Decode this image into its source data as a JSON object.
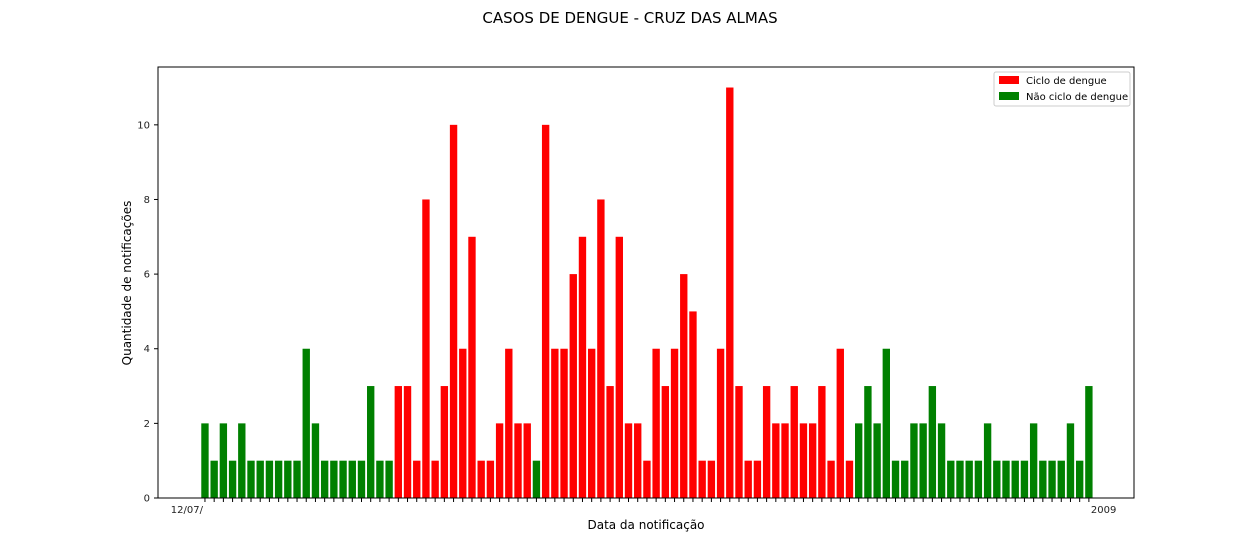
{
  "chart_data": {
    "type": "bar",
    "title": "CASOS DE DENGUE - CRUZ DAS ALMAS",
    "xlabel": "Data da notificação",
    "ylabel": "Quantidade de notificações",
    "ylim": [
      0,
      11.55
    ],
    "yticks": [
      0,
      2,
      4,
      6,
      8,
      10
    ],
    "xtick_first": "12/07/",
    "xtick_last": "2009",
    "grid": false,
    "legend_position": "top-right",
    "series": [
      {
        "name": "Ciclo de dengue",
        "color": "#ff0000"
      },
      {
        "name": "Não ciclo de dengue",
        "color": "#008000"
      }
    ],
    "values": [
      2,
      1,
      2,
      1,
      2,
      1,
      1,
      1,
      1,
      1,
      1,
      4,
      2,
      1,
      1,
      1,
      1,
      1,
      3,
      1,
      1,
      3,
      3,
      1,
      8,
      1,
      3,
      10,
      4,
      7,
      1,
      1,
      2,
      4,
      2,
      2,
      1,
      10,
      4,
      4,
      6,
      7,
      4,
      8,
      3,
      7,
      2,
      2,
      1,
      4,
      3,
      4,
      6,
      5,
      1,
      1,
      4,
      11,
      3,
      1,
      1,
      3,
      2,
      2,
      3,
      2,
      2,
      3,
      1,
      4,
      1,
      2,
      3,
      2,
      4,
      1,
      1,
      2,
      2,
      3,
      2,
      1,
      1,
      1,
      1,
      2,
      1,
      1,
      1,
      1,
      2,
      1,
      1,
      1,
      2,
      1,
      3
    ],
    "series_index": [
      1,
      1,
      1,
      1,
      1,
      1,
      1,
      1,
      1,
      1,
      1,
      1,
      1,
      1,
      1,
      1,
      1,
      1,
      1,
      1,
      1,
      0,
      0,
      0,
      0,
      0,
      0,
      0,
      0,
      0,
      0,
      0,
      0,
      0,
      0,
      0,
      1,
      0,
      0,
      0,
      0,
      0,
      0,
      0,
      0,
      0,
      0,
      0,
      0,
      0,
      0,
      0,
      0,
      0,
      0,
      0,
      0,
      0,
      0,
      0,
      0,
      0,
      0,
      0,
      0,
      0,
      0,
      0,
      0,
      0,
      0,
      1,
      1,
      1,
      1,
      1,
      1,
      1,
      1,
      1,
      1,
      1,
      1,
      1,
      1,
      1,
      1,
      1,
      1,
      1,
      1,
      1,
      1,
      1,
      1,
      1,
      1
    ]
  }
}
